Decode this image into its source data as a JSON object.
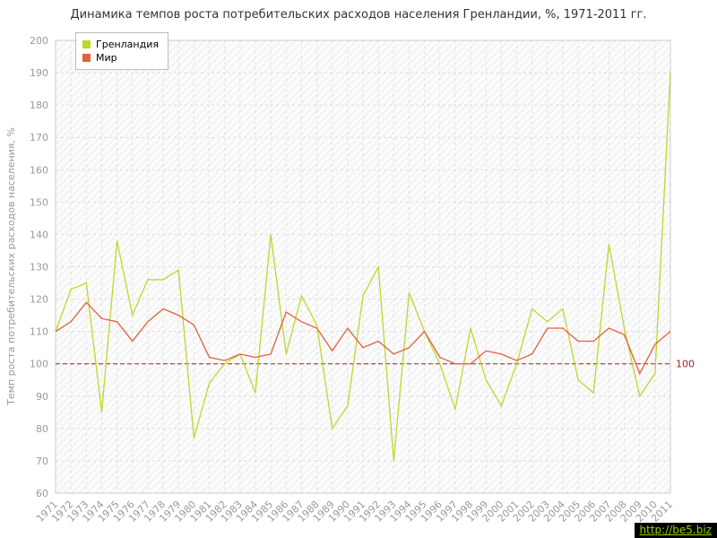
{
  "watermark": "http://be5.biz",
  "chart_data": {
    "type": "line",
    "title": "Динамика темпов роста потребительских расходов населения Гренландии, %, 1971-2011 гг.",
    "ylabel": "Темп роста потребительских расходов населения, %",
    "ylim": [
      60,
      200
    ],
    "ytick_step": 10,
    "grid": true,
    "legend_position": "top-left",
    "categories": [
      "1971",
      "1972",
      "1973",
      "1974",
      "1975",
      "1976",
      "1977",
      "1978",
      "1979",
      "1980",
      "1981",
      "1982",
      "1983",
      "1984",
      "1985",
      "1986",
      "1987",
      "1988",
      "1989",
      "1990",
      "1991",
      "1992",
      "1993",
      "1994",
      "1995",
      "1996",
      "1997",
      "1998",
      "1999",
      "2000",
      "2001",
      "2002",
      "2003",
      "2004",
      "2005",
      "2006",
      "2007",
      "2008",
      "2009",
      "2010",
      "2011"
    ],
    "series": [
      {
        "name": "Гренландия",
        "color": "#c0d62c",
        "values": [
          110,
          123,
          125,
          85,
          138,
          115,
          126,
          126,
          129,
          77,
          94,
          100,
          103,
          91,
          140,
          103,
          121,
          112,
          80,
          87,
          121,
          130,
          70,
          122,
          110,
          100,
          86,
          111,
          95,
          87,
          100,
          117,
          113,
          117,
          95,
          91,
          137,
          111,
          90,
          97,
          190
        ]
      },
      {
        "name": "Мир",
        "color": "#e2603c",
        "values": [
          110,
          113,
          119,
          114,
          113,
          107,
          113,
          117,
          115,
          112,
          102,
          101,
          103,
          102,
          103,
          116,
          113,
          111,
          104,
          111,
          105,
          107,
          103,
          105,
          110,
          102,
          100,
          100,
          104,
          103,
          101,
          103,
          111,
          111,
          107,
          107,
          111,
          109,
          97,
          106,
          110
        ]
      }
    ],
    "reference_line": {
      "value": 100,
      "label": "100",
      "color": "#992222"
    }
  }
}
